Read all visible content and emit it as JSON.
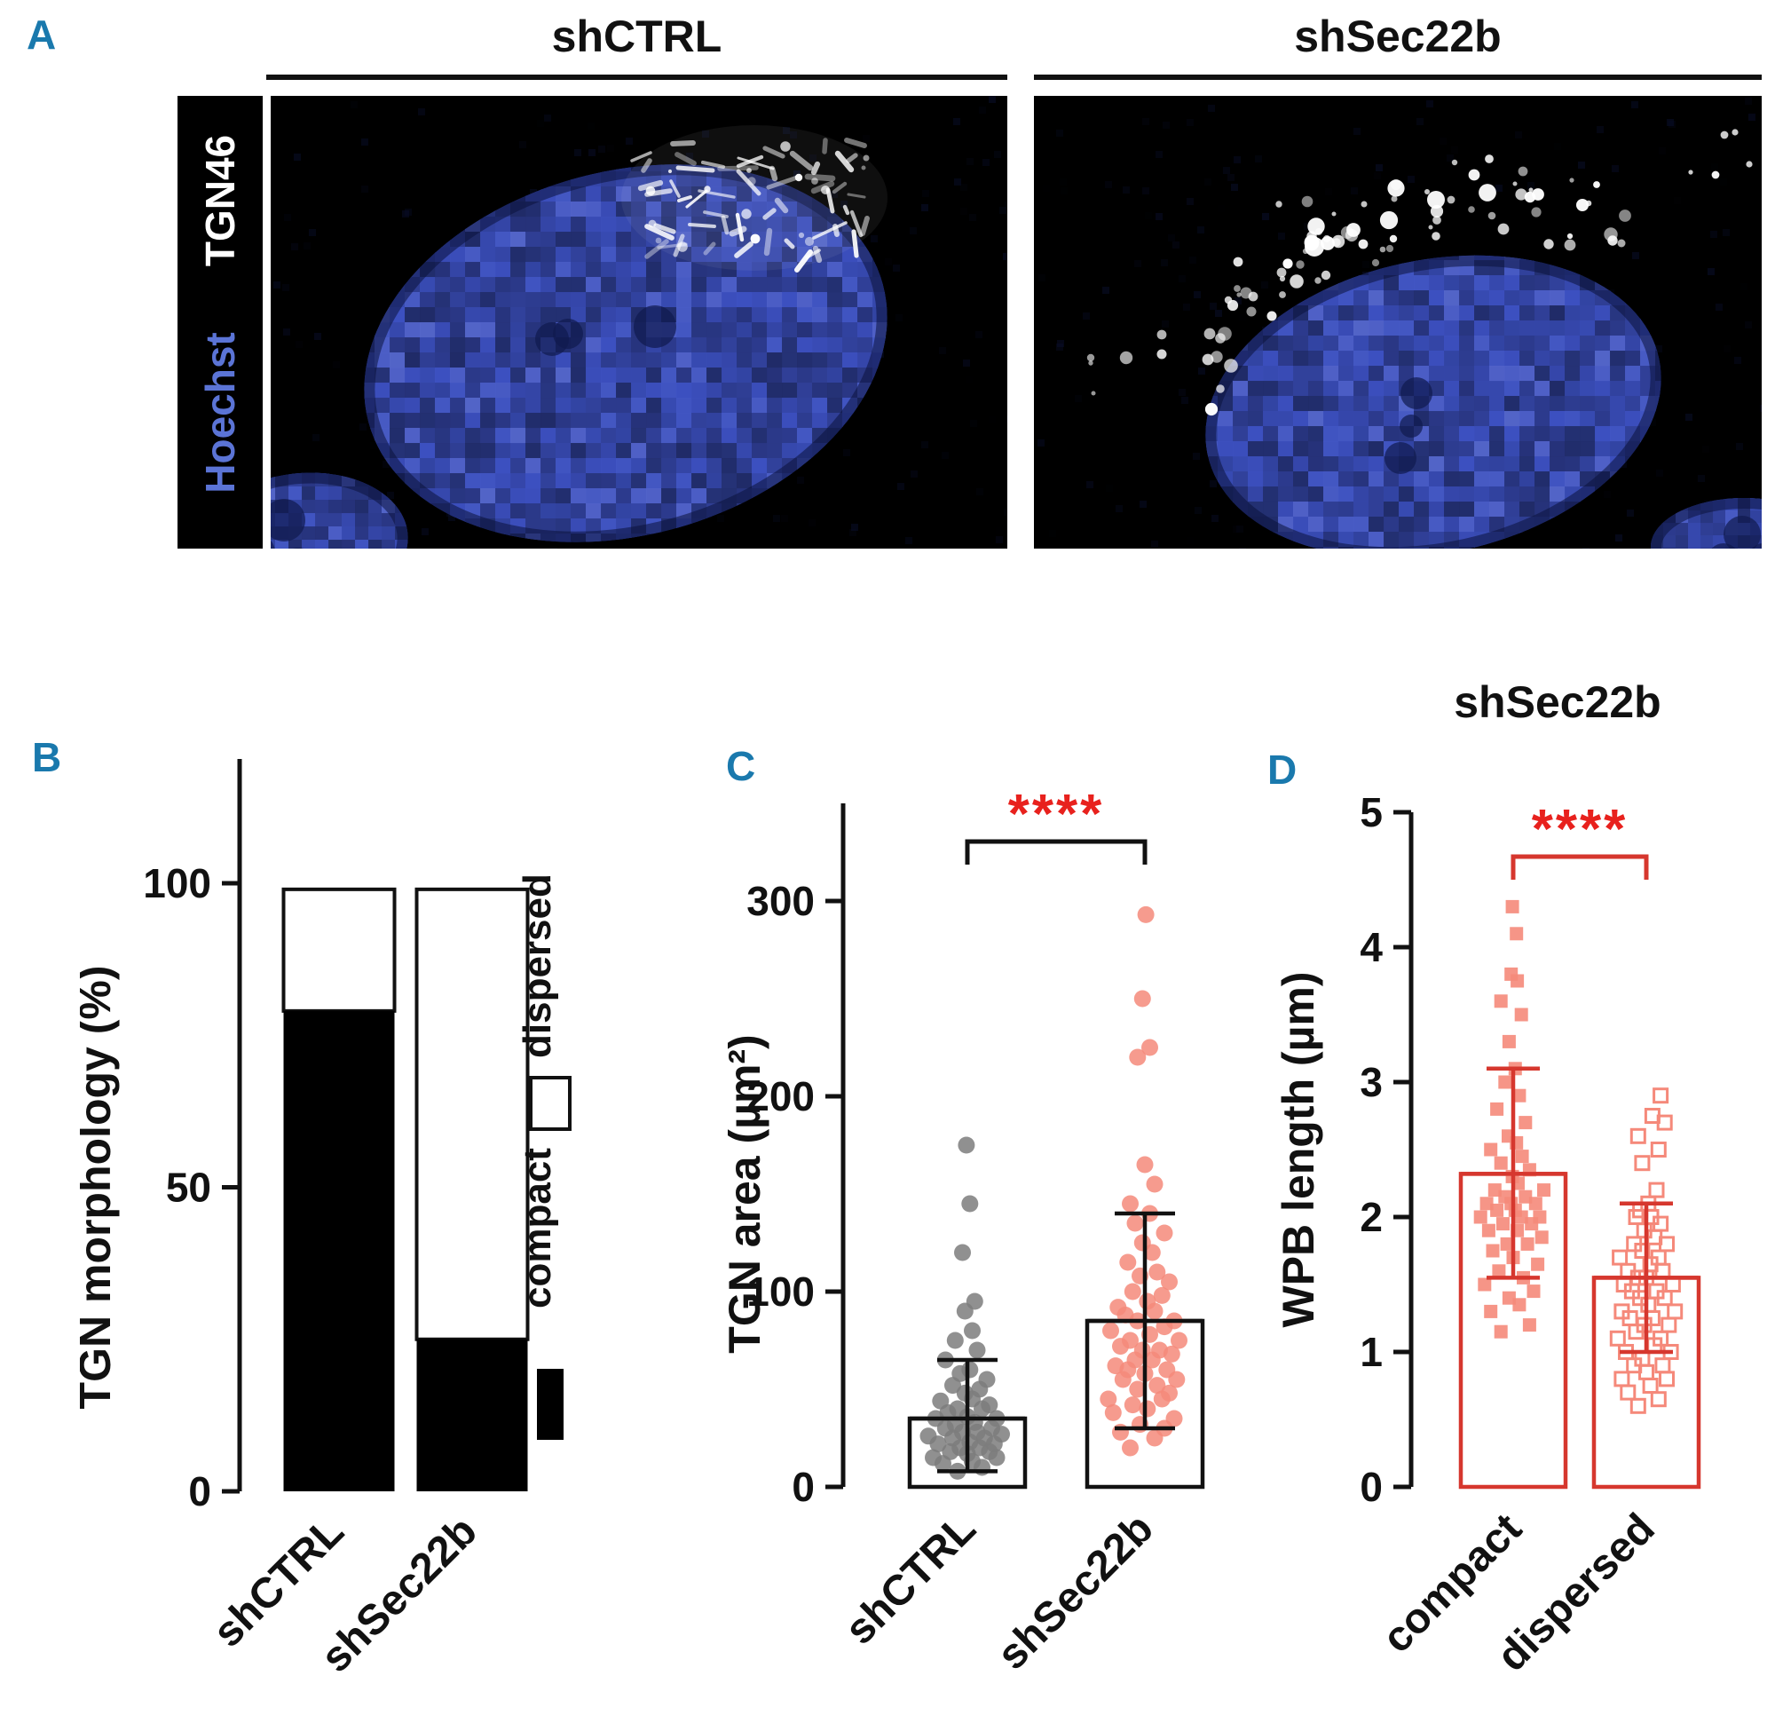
{
  "colors": {
    "panel_letter": "#1a79ad",
    "significance": "#e8211d",
    "salmon": "#f5897a",
    "gray_points": "#7d7d7d",
    "red_axis": "#d6372e"
  },
  "panel_a": {
    "label": "A",
    "columns": [
      "shCTRL",
      "shSec22b"
    ],
    "stain_labels": [
      {
        "text": "TGN46",
        "color": "#ffffff"
      },
      {
        "text": "Hoechst",
        "color": "#5b74d6"
      }
    ]
  },
  "panel_b": {
    "label": "B"
  },
  "panel_c": {
    "label": "C"
  },
  "panel_d": {
    "label": "D"
  },
  "chart_data": [
    {
      "id": "B",
      "type": "bar",
      "stacked": true,
      "ylabel": "TGN morphology (%)",
      "yticks": [
        0,
        50,
        100
      ],
      "ylim": [
        0,
        120
      ],
      "categories": [
        "shCTRL",
        "shSec22b"
      ],
      "series": [
        {
          "name": "compact",
          "values": [
            79,
            25
          ],
          "fill": "#000000"
        },
        {
          "name": "dispersed",
          "values": [
            20,
            74
          ],
          "fill": "#ffffff"
        }
      ],
      "legend": [
        {
          "label": "dispersed",
          "swatch": "open"
        },
        {
          "label": "compact",
          "swatch": "filled"
        }
      ]
    },
    {
      "id": "C",
      "type": "scatter",
      "ylabel": "TGN area (µm²)",
      "yticks": [
        0,
        100,
        200,
        300
      ],
      "ylim": [
        0,
        350
      ],
      "significance": {
        "label": "****",
        "color": "#e8211d",
        "bracket_color": "#111111"
      },
      "groups": [
        {
          "label": "shCTRL",
          "marker": "circle",
          "filled": true,
          "color": "#7d7d7d",
          "bar_color": "#111111",
          "mean": 35,
          "sd_low": 8,
          "sd_high": 65,
          "points": [
            [
              -0.2,
              8
            ],
            [
              0.3,
              10
            ],
            [
              -0.5,
              12
            ],
            [
              0.1,
              13
            ],
            [
              0.6,
              15
            ],
            [
              -0.7,
              15
            ],
            [
              0,
              17
            ],
            [
              -0.35,
              18
            ],
            [
              0.45,
              18
            ],
            [
              -0.15,
              20
            ],
            [
              0.25,
              20
            ],
            [
              -0.6,
              22
            ],
            [
              0.55,
              22
            ],
            [
              0.05,
              23
            ],
            [
              -0.3,
              25
            ],
            [
              0.35,
              25
            ],
            [
              -0.8,
              26
            ],
            [
              0.7,
              27
            ],
            [
              -0.1,
              28
            ],
            [
              0.2,
              28
            ],
            [
              -0.45,
              30
            ],
            [
              0.5,
              30
            ],
            [
              -0.25,
              32
            ],
            [
              0.15,
              33
            ],
            [
              -0.65,
              35
            ],
            [
              0.6,
              35
            ],
            [
              0,
              36
            ],
            [
              -0.4,
              38
            ],
            [
              0.3,
              40
            ],
            [
              -0.2,
              40
            ],
            [
              0.45,
              42
            ],
            [
              -0.55,
              44
            ],
            [
              0.1,
              45
            ],
            [
              -0.05,
              48
            ],
            [
              0.25,
              50
            ],
            [
              -0.3,
              52
            ],
            [
              0.4,
              55
            ],
            [
              -0.15,
              58
            ],
            [
              0.05,
              60
            ],
            [
              -0.45,
              65
            ],
            [
              0.2,
              70
            ],
            [
              -0.25,
              75
            ],
            [
              0.1,
              80
            ],
            [
              -0.05,
              90
            ],
            [
              0.15,
              95
            ],
            [
              -0.1,
              120
            ],
            [
              0.05,
              145
            ],
            [
              -0.02,
              175
            ]
          ]
        },
        {
          "label": "shSec22b",
          "marker": "circle",
          "filled": true,
          "color": "#f5897a",
          "bar_color": "#111111",
          "mean": 85,
          "sd_low": 30,
          "sd_high": 140,
          "points": [
            [
              -0.3,
              20
            ],
            [
              0.2,
              25
            ],
            [
              -0.5,
              28
            ],
            [
              0.4,
              30
            ],
            [
              -0.1,
              32
            ],
            [
              0.6,
              35
            ],
            [
              -0.65,
              38
            ],
            [
              0.05,
              40
            ],
            [
              -0.25,
              42
            ],
            [
              0.35,
              45
            ],
            [
              -0.75,
              45
            ],
            [
              0.5,
              48
            ],
            [
              -0.15,
              50
            ],
            [
              0.25,
              52
            ],
            [
              -0.45,
              55
            ],
            [
              0.65,
              55
            ],
            [
              0,
              58
            ],
            [
              -0.35,
              60
            ],
            [
              0.45,
              60
            ],
            [
              -0.6,
              62
            ],
            [
              0.15,
              65
            ],
            [
              -0.2,
              65
            ],
            [
              0.55,
              68
            ],
            [
              -0.05,
              70
            ],
            [
              0.3,
              70
            ],
            [
              -0.5,
              72
            ],
            [
              0.7,
              75
            ],
            [
              -0.3,
              75
            ],
            [
              0.1,
              78
            ],
            [
              -0.7,
              80
            ],
            [
              0.4,
              82
            ],
            [
              -0.15,
              85
            ],
            [
              0.6,
              85
            ],
            [
              -0.4,
              88
            ],
            [
              0.2,
              90
            ],
            [
              -0.55,
              92
            ],
            [
              0.05,
              95
            ],
            [
              0.35,
              98
            ],
            [
              -0.25,
              100
            ],
            [
              0.5,
              105
            ],
            [
              -0.1,
              108
            ],
            [
              0.25,
              110
            ],
            [
              -0.35,
              115
            ],
            [
              0.15,
              120
            ],
            [
              -0.05,
              125
            ],
            [
              0.4,
              130
            ],
            [
              -0.2,
              135
            ],
            [
              0.1,
              140
            ],
            [
              -0.3,
              145
            ],
            [
              0.2,
              155
            ],
            [
              0,
              165
            ],
            [
              -0.15,
              220
            ],
            [
              0.1,
              225
            ],
            [
              -0.05,
              250
            ],
            [
              0.02,
              293
            ]
          ]
        }
      ]
    },
    {
      "id": "D",
      "type": "scatter",
      "title": "shSec22b",
      "ylabel": "WPB length (µm)",
      "yticks": [
        0,
        1,
        2,
        3,
        4,
        5
      ],
      "ylim": [
        0,
        5
      ],
      "significance": {
        "label": "****",
        "color": "#e8211d",
        "bracket_color": "#d6372e"
      },
      "groups": [
        {
          "label": "compact",
          "marker": "square",
          "filled": true,
          "color": "#f5897a",
          "bar_color": "#d6372e",
          "mean": 2.32,
          "sd_low": 1.55,
          "sd_high": 3.1,
          "points": [
            [
              -0.3,
              1.15
            ],
            [
              0.4,
              1.2
            ],
            [
              -0.55,
              1.3
            ],
            [
              0.15,
              1.35
            ],
            [
              -0.1,
              1.4
            ],
            [
              0.5,
              1.45
            ],
            [
              -0.7,
              1.5
            ],
            [
              0.25,
              1.55
            ],
            [
              -0.35,
              1.6
            ],
            [
              0.6,
              1.65
            ],
            [
              0,
              1.7
            ],
            [
              -0.5,
              1.75
            ],
            [
              0.35,
              1.8
            ],
            [
              -0.15,
              1.8
            ],
            [
              0.7,
              1.85
            ],
            [
              -0.6,
              1.9
            ],
            [
              0.1,
              1.9
            ],
            [
              -0.25,
              1.95
            ],
            [
              0.45,
              1.95
            ],
            [
              -0.8,
              2.0
            ],
            [
              0.2,
              2.0
            ],
            [
              0.65,
              2.0
            ],
            [
              -0.4,
              2.05
            ],
            [
              0.05,
              2.05
            ],
            [
              -0.05,
              2.1
            ],
            [
              0.55,
              2.1
            ],
            [
              -0.65,
              2.1
            ],
            [
              0.3,
              2.15
            ],
            [
              -0.2,
              2.15
            ],
            [
              0.75,
              2.2
            ],
            [
              -0.45,
              2.2
            ],
            [
              0.12,
              2.25
            ],
            [
              -0.02,
              2.3
            ],
            [
              0.4,
              2.35
            ],
            [
              -0.3,
              2.4
            ],
            [
              0.22,
              2.45
            ],
            [
              -0.55,
              2.5
            ],
            [
              0.08,
              2.55
            ],
            [
              -0.12,
              2.6
            ],
            [
              0.3,
              2.7
            ],
            [
              -0.4,
              2.8
            ],
            [
              0.15,
              2.9
            ],
            [
              -0.2,
              3.0
            ],
            [
              0.05,
              3.1
            ],
            [
              -0.1,
              3.3
            ],
            [
              0.2,
              3.5
            ],
            [
              -0.3,
              3.6
            ],
            [
              0.1,
              3.75
            ],
            [
              -0.05,
              3.8
            ],
            [
              0.08,
              4.1
            ],
            [
              -0.02,
              4.3
            ]
          ]
        },
        {
          "label": "dispersed",
          "marker": "square",
          "filled": false,
          "color": "#f5897a",
          "bar_color": "#d6372e",
          "mean": 1.55,
          "sd_low": 1.0,
          "sd_high": 2.1,
          "points": [
            [
              -0.2,
              0.6
            ],
            [
              0.3,
              0.65
            ],
            [
              -0.45,
              0.7
            ],
            [
              0.1,
              0.75
            ],
            [
              -0.6,
              0.8
            ],
            [
              0.5,
              0.8
            ],
            [
              0,
              0.85
            ],
            [
              -0.3,
              0.9
            ],
            [
              0.4,
              0.9
            ],
            [
              -0.1,
              0.95
            ],
            [
              0.6,
              1.0
            ],
            [
              -0.5,
              1.0
            ],
            [
              0.2,
              1.05
            ],
            [
              -0.7,
              1.1
            ],
            [
              0.35,
              1.1
            ],
            [
              -0.25,
              1.15
            ],
            [
              0.55,
              1.2
            ],
            [
              -0.05,
              1.2
            ],
            [
              0.15,
              1.25
            ],
            [
              -0.4,
              1.25
            ],
            [
              0.7,
              1.3
            ],
            [
              -0.6,
              1.3
            ],
            [
              0.05,
              1.35
            ],
            [
              -0.15,
              1.4
            ],
            [
              0.45,
              1.4
            ],
            [
              -0.35,
              1.45
            ],
            [
              0.25,
              1.45
            ],
            [
              -0.55,
              1.5
            ],
            [
              0.65,
              1.5
            ],
            [
              0,
              1.55
            ],
            [
              -0.2,
              1.55
            ],
            [
              0.4,
              1.6
            ],
            [
              -0.45,
              1.6
            ],
            [
              0.1,
              1.65
            ],
            [
              -0.65,
              1.7
            ],
            [
              0.3,
              1.7
            ],
            [
              -0.1,
              1.75
            ],
            [
              0.5,
              1.8
            ],
            [
              -0.3,
              1.8
            ],
            [
              0.2,
              1.85
            ],
            [
              -0.05,
              1.9
            ],
            [
              0.35,
              1.95
            ],
            [
              -0.25,
              2.0
            ],
            [
              0.12,
              2.0
            ],
            [
              -0.15,
              2.05
            ],
            [
              0.05,
              2.1
            ],
            [
              0.25,
              2.2
            ],
            [
              -0.1,
              2.4
            ],
            [
              0.3,
              2.5
            ],
            [
              -0.2,
              2.6
            ],
            [
              0.45,
              2.7
            ],
            [
              0.15,
              2.75
            ],
            [
              0.35,
              2.9
            ]
          ]
        }
      ]
    }
  ]
}
